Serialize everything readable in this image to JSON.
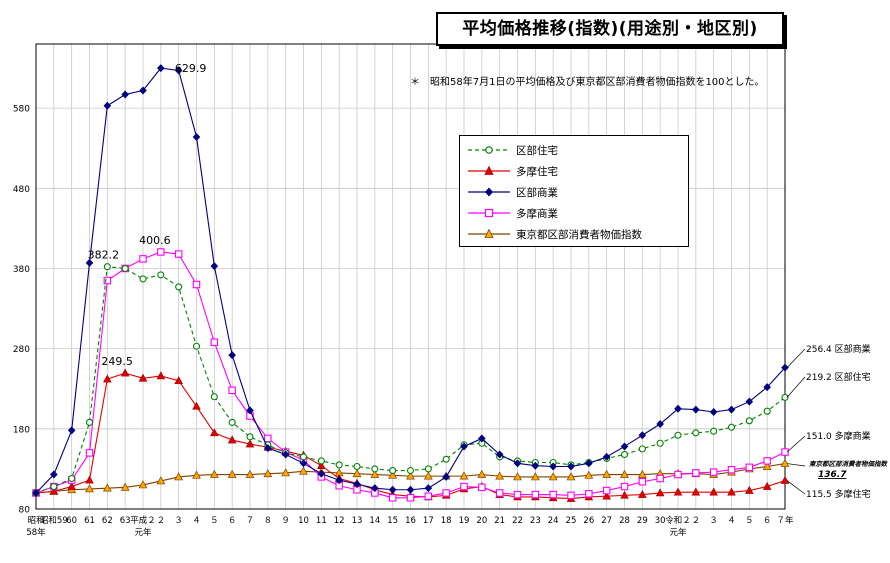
{
  "title": "平均価格推移(指数)(用途別・地区別)",
  "note": "＊　昭和58年7月1日の平均価格及び東京都区部消費者物価指数を100とした。",
  "chart_data": {
    "type": "line",
    "ylim": [
      80,
      660
    ],
    "yticks": [
      80,
      180,
      280,
      380,
      480,
      580
    ],
    "grid": true,
    "legend_placement": "top-center",
    "x_tick_labels": [
      [
        "昭和",
        "58年"
      ],
      [
        "昭和59"
      ],
      [
        "60"
      ],
      [
        "61"
      ],
      [
        "62"
      ],
      [
        "63"
      ],
      [
        "平成２",
        "元年"
      ],
      [
        "２"
      ],
      [
        "３"
      ],
      [
        "４"
      ],
      [
        "５"
      ],
      [
        "６"
      ],
      [
        "７"
      ],
      [
        "８"
      ],
      [
        "９"
      ],
      [
        "10"
      ],
      [
        "11"
      ],
      [
        "12"
      ],
      [
        "13"
      ],
      [
        "14"
      ],
      [
        "15"
      ],
      [
        "16"
      ],
      [
        "17"
      ],
      [
        "18"
      ],
      [
        "19"
      ],
      [
        "20"
      ],
      [
        "21"
      ],
      [
        "22"
      ],
      [
        "23"
      ],
      [
        "24"
      ],
      [
        "25"
      ],
      [
        "26"
      ],
      [
        "27"
      ],
      [
        "28"
      ],
      [
        "29"
      ],
      [
        "30"
      ],
      [
        "令和２",
        "元年"
      ],
      [
        "２"
      ],
      [
        "３"
      ],
      [
        "４"
      ],
      [
        "５"
      ],
      [
        "６"
      ],
      [
        "７年"
      ]
    ],
    "x": [
      "昭和58年",
      "昭和59年",
      "昭和60年",
      "昭和61年",
      "昭和62年",
      "昭和63年",
      "平成元年",
      "平成2年",
      "平成3年",
      "平成4年",
      "平成5年",
      "平成6年",
      "平成7年",
      "平成8年",
      "平成9年",
      "平成10年",
      "平成11年",
      "平成12年",
      "平成13年",
      "平成14年",
      "平成15年",
      "平成16年",
      "平成17年",
      "平成18年",
      "平成19年",
      "平成20年",
      "平成21年",
      "平成22年",
      "平成23年",
      "平成24年",
      "平成25年",
      "平成26年",
      "平成27年",
      "平成28年",
      "平成29年",
      "平成30年",
      "令和元年",
      "令和2年",
      "令和3年",
      "令和4年",
      "令和5年",
      "令和6年",
      "令和7年"
    ],
    "series": [
      {
        "name": "区部住宅",
        "color": "#008000",
        "style": "dashed",
        "marker": "open-circle",
        "values": [
          100,
          108,
          118,
          188,
          382.2,
          380,
          367,
          372,
          357,
          283,
          220,
          188,
          170,
          160,
          150,
          145,
          140,
          135,
          133,
          130,
          128,
          128,
          130,
          142,
          160,
          162,
          145,
          140,
          138,
          138,
          135,
          138,
          143,
          148,
          155,
          162,
          172,
          175,
          177,
          182,
          190,
          202,
          219.2
        ]
      },
      {
        "name": "多摩住宅",
        "color": "#e00000",
        "style": "solid",
        "marker": "filled-triangle",
        "values": [
          100,
          102,
          108,
          116,
          242,
          249.5,
          243,
          246,
          240,
          208,
          175,
          166,
          161,
          157,
          152,
          147,
          134,
          118,
          112,
          104,
          98,
          96,
          95,
          97,
          105,
          108,
          98,
          95,
          95,
          94,
          93,
          95,
          96,
          97,
          98,
          100,
          101,
          101,
          101,
          101,
          103,
          108,
          115.5
        ]
      },
      {
        "name": "区部商業",
        "color": "#000080",
        "style": "solid",
        "marker": "filled-diamond",
        "values": [
          100,
          123,
          178,
          387,
          583,
          597,
          602,
          629.9,
          627,
          544,
          383,
          272,
          203,
          156,
          148,
          137,
          124,
          116,
          111,
          106,
          104,
          104,
          106,
          120,
          158,
          168,
          148,
          137,
          134,
          133,
          133,
          137,
          145,
          158,
          172,
          186,
          205,
          204,
          201,
          204,
          214,
          232,
          256.4
        ]
      },
      {
        "name": "多摩商業",
        "color": "#ff00ff",
        "style": "solid",
        "marker": "open-square",
        "values": [
          100,
          108,
          116,
          150,
          365,
          380,
          392,
          400.6,
          398,
          360,
          288,
          228,
          196,
          168,
          151,
          141,
          120,
          109,
          104,
          100,
          94,
          94,
          96,
          100,
          108,
          107,
          100,
          98,
          98,
          98,
          97,
          99,
          103,
          108,
          114,
          118,
          123,
          125,
          126,
          129,
          132,
          140,
          151
        ]
      },
      {
        "name": "東京都区部消費者物価指数",
        "color": "#804000",
        "style": "solid",
        "marker": "filled-triangle-orange",
        "values": [
          100,
          102,
          104,
          105,
          106,
          107,
          110,
          115,
          120,
          122,
          123,
          123,
          123,
          124,
          125,
          127,
          126,
          125,
          124,
          123,
          122,
          121,
          121,
          121,
          121,
          123,
          121,
          120,
          120,
          120,
          120,
          122,
          123,
          123,
          123,
          124,
          124,
          124,
          123,
          126,
          130,
          133,
          136.7
        ]
      }
    ],
    "annotations": [
      {
        "text": "629.9",
        "series": 2,
        "index": 7
      },
      {
        "text": "382.2",
        "series": 0,
        "index": 4
      },
      {
        "text": "400.6",
        "series": 3,
        "index": 7
      },
      {
        "text": "249.5",
        "series": 1,
        "index": 5
      }
    ],
    "end_labels": [
      {
        "text": "256.4 区部商業",
        "series": 2
      },
      {
        "text": "219.2 区部住宅",
        "series": 0
      },
      {
        "text": "151.0 多摩商業",
        "series": 3
      },
      {
        "text": "東京都区部消費者物価指数",
        "sub": "136.7",
        "series": 4
      },
      {
        "text": "115.5 多摩住宅",
        "series": 1
      }
    ]
  }
}
